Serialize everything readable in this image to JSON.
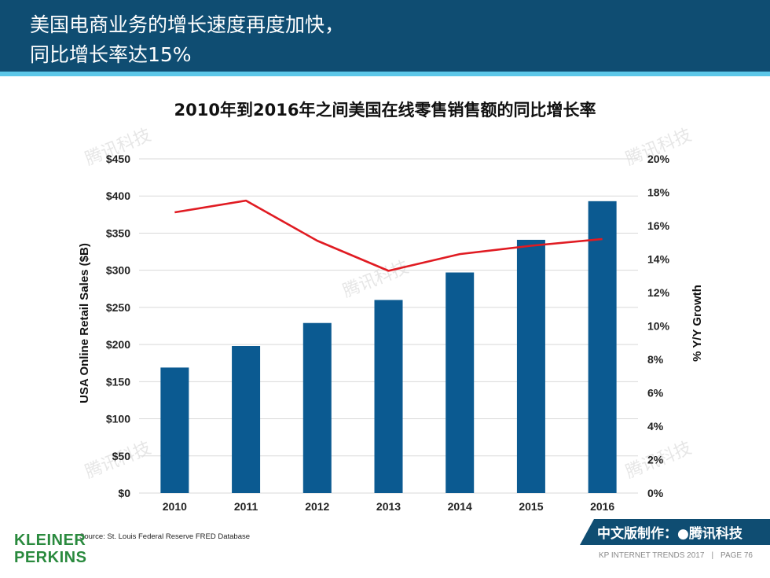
{
  "header": {
    "title_line1": "美国电商业务的增长速度再度加快，",
    "title_line2": "同比增长率达15%"
  },
  "chart_data": {
    "type": "bar",
    "title": "2010年到2016年之间美国在线零售销售额的同比增长率",
    "categories": [
      "2010",
      "2011",
      "2012",
      "2013",
      "2014",
      "2015",
      "2016"
    ],
    "series": [
      {
        "name": "USA Online Retail Sales ($B)",
        "type": "bar",
        "axis": "left",
        "values": [
          169,
          198,
          229,
          260,
          297,
          341,
          393
        ],
        "color": "#0b5a91"
      },
      {
        "name": "% Y/Y Growth",
        "type": "line",
        "axis": "right",
        "values": [
          16.8,
          17.5,
          15.1,
          13.3,
          14.3,
          14.8,
          15.2
        ],
        "color": "#e01b22"
      }
    ],
    "ylabel": "USA Online Retail Sales ($B)",
    "y2label": "% Y/Y Growth",
    "ylim": [
      0,
      450
    ],
    "y2lim": [
      0,
      20
    ],
    "yticks": [
      "$0",
      "$50",
      "$100",
      "$150",
      "$200",
      "$250",
      "$300",
      "$350",
      "$400",
      "$450"
    ],
    "y2ticks": [
      "0%",
      "2%",
      "4%",
      "6%",
      "8%",
      "10%",
      "12%",
      "14%",
      "16%",
      "18%",
      "20%"
    ],
    "grid": true
  },
  "watermark": {
    "text": "腾讯科技"
  },
  "source": "Source: St. Louis Federal Reserve FRED Database",
  "logo": {
    "line1": "KLEINER",
    "line2": "PERKINS"
  },
  "badge": {
    "text": "中文版制作：●腾讯科技"
  },
  "footer": {
    "left": "KP INTERNET TRENDS 2017",
    "separator": "|",
    "right": "PAGE 76"
  }
}
